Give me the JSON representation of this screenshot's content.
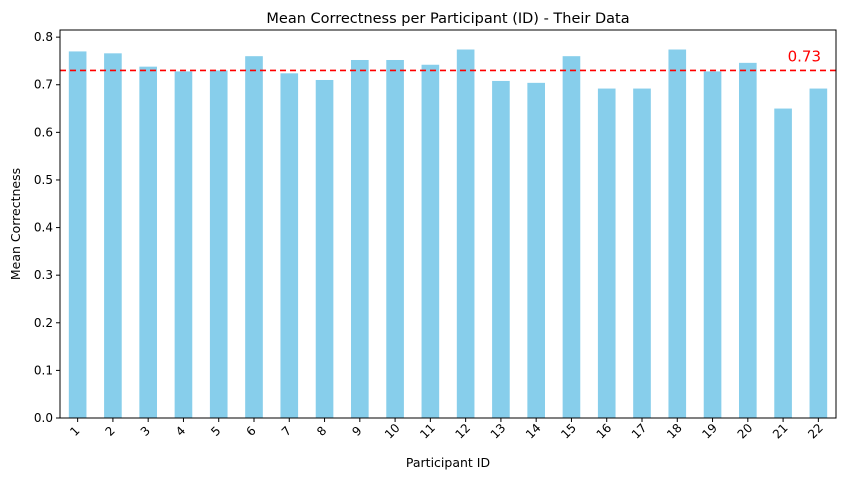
{
  "chart_data": {
    "type": "bar",
    "title": "Mean Correctness per Participant (ID) - Their Data",
    "xlabel": "Participant ID",
    "ylabel": "Mean Correctness",
    "categories": [
      "1",
      "2",
      "3",
      "4",
      "5",
      "6",
      "7",
      "8",
      "9",
      "10",
      "11",
      "12",
      "13",
      "14",
      "15",
      "16",
      "17",
      "18",
      "19",
      "20",
      "21",
      "22"
    ],
    "values": [
      0.77,
      0.766,
      0.738,
      0.728,
      0.73,
      0.76,
      0.724,
      0.71,
      0.752,
      0.752,
      0.742,
      0.774,
      0.708,
      0.704,
      0.76,
      0.692,
      0.692,
      0.774,
      0.728,
      0.746,
      0.65,
      0.692
    ],
    "ylim": [
      0,
      0.815
    ],
    "yticks": [
      "0.0",
      "0.1",
      "0.2",
      "0.3",
      "0.4",
      "0.5",
      "0.6",
      "0.7",
      "0.8"
    ],
    "bar_color": "#87CEEB",
    "reference_line": {
      "value": 0.73,
      "label": "0.73",
      "color": "#ff0000",
      "style": "dashed"
    },
    "grid": false,
    "legend": "none"
  }
}
